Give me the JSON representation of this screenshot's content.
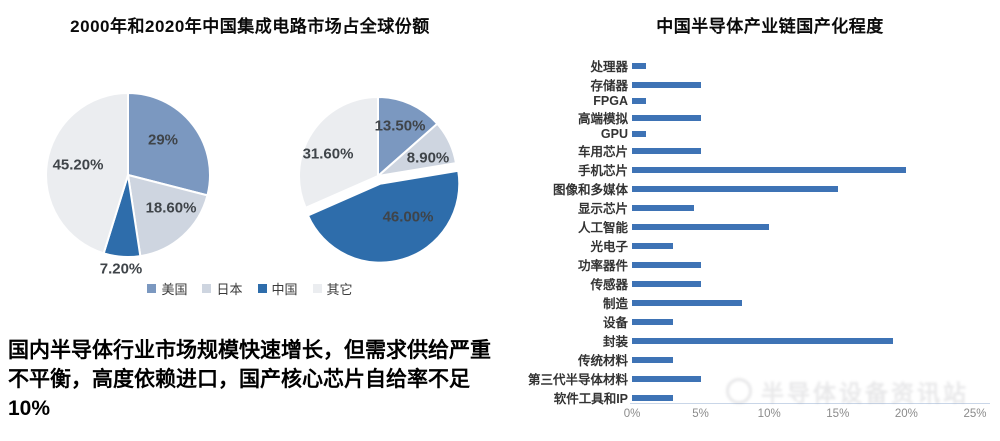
{
  "left_panel": {
    "title": "2000年和2020年中国集成电路市场占全球份额",
    "note_line1": "国内半导体行业市场规模快速增长，但需求供给严重",
    "note_line2": "不平衡，高度依赖进口，国产核心芯片自给率不足10%"
  },
  "right_panel": {
    "title": "中国半导体产业链国产化程度"
  },
  "legend": {
    "labels": [
      "美国",
      "日本",
      "中国",
      "其它"
    ]
  },
  "palette": {
    "series": [
      "#7b98c0",
      "#ced5e0",
      "#2e6dab",
      "#ebedf0"
    ],
    "bar": "#3e73b5",
    "axis_line": "#c9d6e8",
    "tick_text": "#8b8b8b",
    "slice_label_text": "#3f4449"
  },
  "watermark": {
    "text": "半导体设备资讯站"
  },
  "chart_data": [
    {
      "type": "pie",
      "name": "2000年",
      "unit": "%",
      "labels": [
        "美国",
        "日本",
        "中国",
        "其它"
      ],
      "values": [
        29,
        18.6,
        7.2,
        45.2
      ],
      "display_labels": [
        "29%",
        "18.60%",
        "7.20%",
        "45.20%"
      ],
      "start_angle_deg": 0,
      "direction": "clockwise"
    },
    {
      "type": "pie",
      "name": "2020年",
      "unit": "%",
      "labels": [
        "美国",
        "日本",
        "中国",
        "其它"
      ],
      "values": [
        13.5,
        8.9,
        46,
        31.6
      ],
      "display_labels": [
        "13.50%",
        "8.90%",
        "46.00%",
        "31.60%"
      ],
      "start_angle_deg": 0,
      "direction": "clockwise",
      "exploded_label": "中国"
    },
    {
      "type": "bar",
      "orientation": "horizontal",
      "title": "中国半导体产业链国产化程度",
      "unit": "%",
      "categories": [
        "处理器",
        "存储器",
        "FPGA",
        "高端模拟",
        "GPU",
        "车用芯片",
        "手机芯片",
        "图像和多媒体",
        "显示芯片",
        "人工智能",
        "光电子",
        "功率器件",
        "传感器",
        "制造",
        "设备",
        "封装",
        "传统材料",
        "第三代半导体材料",
        "软件工具和IP"
      ],
      "values": [
        1,
        5,
        1,
        5,
        1,
        5,
        20,
        15,
        4.5,
        10,
        3,
        5,
        5,
        8,
        3,
        19,
        3,
        5,
        3
      ],
      "xlim": [
        0,
        25
      ],
      "xticks": [
        "0%",
        "5%",
        "10%",
        "15%",
        "20%",
        "25%"
      ],
      "grid": false,
      "legend_position": "none"
    }
  ]
}
